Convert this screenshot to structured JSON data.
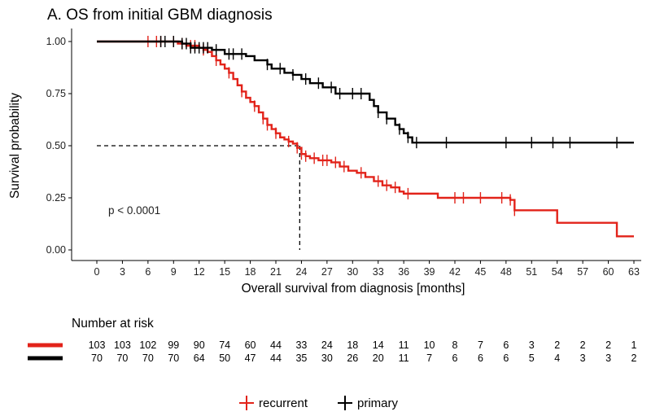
{
  "chart_data": {
    "type": "line",
    "subtype": "kaplan-meier",
    "title": "A. OS from initial GBM diagnosis",
    "xlabel": "Overall survival from diagnosis [months]",
    "ylabel": "Survival probability",
    "xlim": [
      0,
      63
    ],
    "ylim": [
      0,
      1
    ],
    "x_ticks": [
      0,
      3,
      6,
      9,
      12,
      15,
      18,
      21,
      24,
      27,
      30,
      33,
      36,
      39,
      42,
      45,
      48,
      51,
      54,
      57,
      60,
      63
    ],
    "y_ticks": [
      0.0,
      0.25,
      0.5,
      0.75,
      1.0
    ],
    "y_tick_labels": [
      "0.00",
      "0.25",
      "0.50",
      "0.75",
      "1.00"
    ],
    "annotation": "p < 0.0001",
    "median_line": {
      "x": 23.8,
      "y": 0.5
    },
    "series": [
      {
        "name": "recurrent",
        "color": "#e2231a",
        "steps": [
          [
            0,
            1.0
          ],
          [
            9.5,
            0.99
          ],
          [
            10.5,
            0.98
          ],
          [
            12.0,
            0.97
          ],
          [
            12.5,
            0.96
          ],
          [
            13.0,
            0.95
          ],
          [
            13.5,
            0.93
          ],
          [
            14.0,
            0.91
          ],
          [
            14.5,
            0.89
          ],
          [
            15.0,
            0.87
          ],
          [
            15.5,
            0.85
          ],
          [
            16.0,
            0.82
          ],
          [
            16.5,
            0.79
          ],
          [
            17.0,
            0.76
          ],
          [
            17.5,
            0.73
          ],
          [
            18.0,
            0.71
          ],
          [
            18.5,
            0.69
          ],
          [
            19.0,
            0.66
          ],
          [
            19.5,
            0.63
          ],
          [
            20.0,
            0.6
          ],
          [
            20.5,
            0.58
          ],
          [
            21.0,
            0.56
          ],
          [
            21.5,
            0.54
          ],
          [
            22.0,
            0.53
          ],
          [
            22.5,
            0.52
          ],
          [
            23.0,
            0.51
          ],
          [
            23.5,
            0.49
          ],
          [
            24.0,
            0.46
          ],
          [
            24.5,
            0.45
          ],
          [
            25.0,
            0.44
          ],
          [
            26.0,
            0.43
          ],
          [
            27.5,
            0.42
          ],
          [
            28.5,
            0.4
          ],
          [
            29.5,
            0.38
          ],
          [
            30.5,
            0.37
          ],
          [
            31.5,
            0.35
          ],
          [
            32.5,
            0.33
          ],
          [
            33.5,
            0.31
          ],
          [
            34.5,
            0.3
          ],
          [
            35.5,
            0.28
          ],
          [
            36.0,
            0.27
          ],
          [
            39.0,
            0.27
          ],
          [
            40.0,
            0.25
          ],
          [
            46.0,
            0.25
          ],
          [
            48.5,
            0.24
          ],
          [
            49.0,
            0.19
          ],
          [
            53.5,
            0.19
          ],
          [
            54.0,
            0.13
          ],
          [
            60.5,
            0.13
          ],
          [
            61.0,
            0.065
          ],
          [
            63.0,
            0.065
          ]
        ],
        "censored": [
          6.0,
          7.0,
          7.5,
          9.0,
          10.0,
          11.0,
          11.5,
          12.5,
          14.0,
          15.5,
          17.0,
          18.5,
          19.5,
          20.0,
          21.0,
          22.5,
          23.5,
          24.0,
          24.5,
          25.5,
          26.5,
          27.0,
          28.0,
          29.0,
          31.0,
          33.0,
          34.0,
          35.0,
          36.5,
          42.0,
          43.0,
          45.0,
          47.5,
          48.5,
          49.0
        ]
      },
      {
        "name": "primary",
        "color": "#000000",
        "steps": [
          [
            0,
            1.0
          ],
          [
            10.0,
            0.99
          ],
          [
            11.0,
            0.97
          ],
          [
            13.5,
            0.96
          ],
          [
            15.0,
            0.94
          ],
          [
            17.5,
            0.93
          ],
          [
            18.5,
            0.91
          ],
          [
            20.0,
            0.89
          ],
          [
            20.5,
            0.87
          ],
          [
            22.0,
            0.85
          ],
          [
            23.0,
            0.84
          ],
          [
            24.0,
            0.82
          ],
          [
            25.0,
            0.8
          ],
          [
            26.5,
            0.78
          ],
          [
            28.0,
            0.75
          ],
          [
            31.5,
            0.75
          ],
          [
            32.0,
            0.72
          ],
          [
            32.5,
            0.69
          ],
          [
            33.0,
            0.66
          ],
          [
            34.0,
            0.63
          ],
          [
            35.0,
            0.6
          ],
          [
            35.5,
            0.58
          ],
          [
            36.0,
            0.56
          ],
          [
            36.5,
            0.54
          ],
          [
            37.0,
            0.515
          ],
          [
            63.0,
            0.515
          ]
        ],
        "censored": [
          7.5,
          8.0,
          9.0,
          10.0,
          10.5,
          11.0,
          11.5,
          12.0,
          12.5,
          13.0,
          14.0,
          15.5,
          16.0,
          17.0,
          20.0,
          21.5,
          23.0,
          24.5,
          26.0,
          27.5,
          28.5,
          30.0,
          31.0,
          33.0,
          34.0,
          35.5,
          36.5,
          37.5,
          41.0,
          48.0,
          51.0,
          53.5,
          55.5,
          61.0
        ]
      }
    ],
    "risk_table": {
      "title": "Number at risk",
      "rows": [
        {
          "name": "recurrent",
          "color": "#e2231a",
          "values": [
            "103",
            "103",
            "102",
            "99",
            "90",
            "74",
            "60",
            "44",
            "33",
            "24",
            "18",
            "14",
            "11",
            "10",
            "8",
            "7",
            "6",
            "3",
            "2",
            "2",
            "2",
            "1"
          ]
        },
        {
          "name": "primary",
          "color": "#000000",
          "values": [
            "70",
            "70",
            "70",
            "70",
            "64",
            "50",
            "47",
            "44",
            "35",
            "30",
            "26",
            "20",
            "11",
            "7",
            "6",
            "6",
            "6",
            "5",
            "4",
            "3",
            "3",
            "2"
          ]
        }
      ]
    },
    "legend": {
      "position": "bottom",
      "entries": [
        {
          "label": "recurrent",
          "color": "#e2231a"
        },
        {
          "label": "primary",
          "color": "#000000"
        }
      ]
    }
  }
}
